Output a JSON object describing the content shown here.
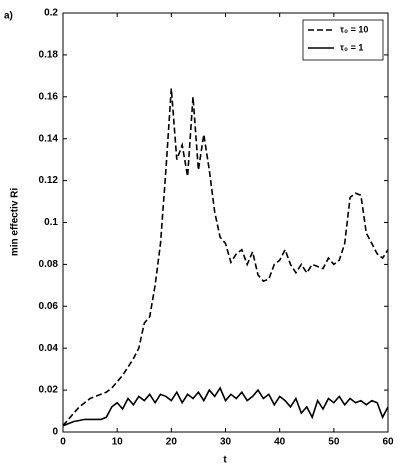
{
  "chart_data": {
    "type": "line",
    "panel_label": "a)",
    "xlabel": "t",
    "ylabel": "min effectiv Ri",
    "x": [
      0,
      1,
      2,
      3,
      4,
      5,
      6,
      7,
      8,
      9,
      10,
      11,
      12,
      13,
      14,
      15,
      16,
      17,
      18,
      19,
      20,
      21,
      22,
      23,
      24,
      25,
      26,
      27,
      28,
      29,
      30,
      31,
      32,
      33,
      34,
      35,
      36,
      37,
      38,
      39,
      40,
      41,
      42,
      43,
      44,
      45,
      46,
      47,
      48,
      49,
      50,
      51,
      52,
      53,
      54,
      55,
      56,
      57,
      58,
      59,
      60
    ],
    "series": [
      {
        "name": "τ₀ = 10",
        "color": "#000000",
        "dash": true,
        "values": [
          0.003,
          0.006,
          0.009,
          0.012,
          0.014,
          0.016,
          0.017,
          0.018,
          0.019,
          0.021,
          0.024,
          0.027,
          0.031,
          0.035,
          0.04,
          0.052,
          0.055,
          0.07,
          0.09,
          0.125,
          0.164,
          0.13,
          0.137,
          0.122,
          0.16,
          0.125,
          0.142,
          0.125,
          0.105,
          0.093,
          0.09,
          0.081,
          0.085,
          0.087,
          0.08,
          0.086,
          0.075,
          0.072,
          0.073,
          0.08,
          0.082,
          0.087,
          0.08,
          0.076,
          0.08,
          0.076,
          0.08,
          0.079,
          0.078,
          0.083,
          0.08,
          0.082,
          0.09,
          0.112,
          0.114,
          0.113,
          0.095,
          0.09,
          0.085,
          0.083,
          0.087
        ]
      },
      {
        "name": "τ₀ = 1",
        "color": "#000000",
        "dash": false,
        "values": [
          0.003,
          0.004,
          0.005,
          0.0055,
          0.006,
          0.006,
          0.006,
          0.006,
          0.007,
          0.012,
          0.014,
          0.011,
          0.016,
          0.013,
          0.017,
          0.015,
          0.018,
          0.014,
          0.018,
          0.017,
          0.015,
          0.019,
          0.014,
          0.018,
          0.016,
          0.019,
          0.015,
          0.02,
          0.017,
          0.021,
          0.015,
          0.018,
          0.016,
          0.019,
          0.015,
          0.017,
          0.02,
          0.016,
          0.018,
          0.013,
          0.017,
          0.015,
          0.012,
          0.016,
          0.009,
          0.012,
          0.007,
          0.015,
          0.011,
          0.016,
          0.014,
          0.017,
          0.013,
          0.016,
          0.014,
          0.015,
          0.013,
          0.015,
          0.014,
          0.007,
          0.012
        ]
      }
    ],
    "xlim": [
      0,
      60
    ],
    "xticks": [
      0,
      10,
      20,
      30,
      40,
      50,
      60
    ],
    "ylim": [
      0,
      0.2
    ],
    "yticks": [
      0,
      0.02,
      0.04,
      0.06,
      0.08,
      0.1,
      0.12,
      0.14,
      0.16,
      0.18,
      0.2
    ],
    "legend": "upper right",
    "grid": false
  }
}
